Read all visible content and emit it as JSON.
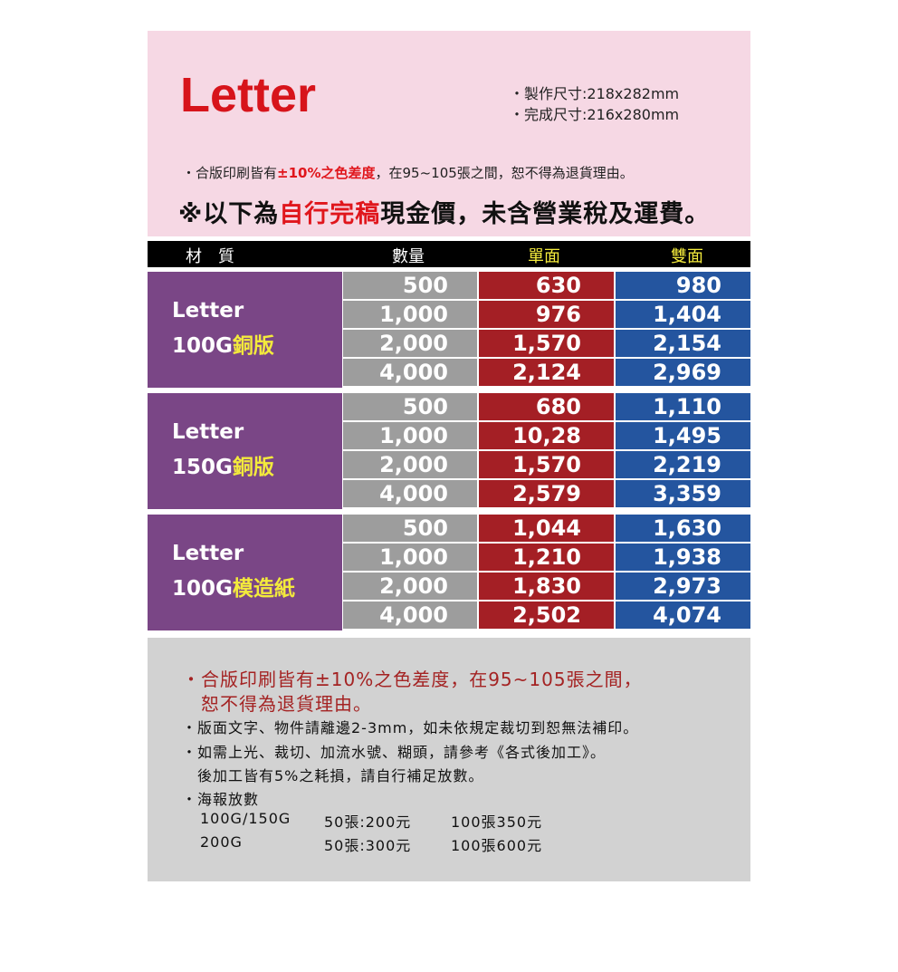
{
  "header": {
    "title": "Letter",
    "spec_make": "・製作尺寸:218x282mm",
    "spec_finish": "・完成尺寸:216x280mm",
    "note1_a": "・合版印刷皆有",
    "note1_red": "±10%之色差度",
    "note1_b": "，在95~105張之間，恕不得為退貨理由。",
    "note2_a": "※以下為",
    "note2_red": "自行完稿",
    "note2_b": "現金價，未含營業稅及運費。"
  },
  "table": {
    "headers": [
      "材　質",
      "數量",
      "單面",
      "雙面"
    ],
    "groups": [
      {
        "name": "Letter",
        "paper": "100G",
        "paper_type": "銅版",
        "rows": [
          [
            "500",
            "630",
            "980"
          ],
          [
            "1,000",
            "976",
            "1,404"
          ],
          [
            "2,000",
            "1,570",
            "2,154"
          ],
          [
            "4,000",
            "2,124",
            "2,969"
          ]
        ]
      },
      {
        "name": "Letter",
        "paper": "150G",
        "paper_type": "銅版",
        "rows": [
          [
            "500",
            "680",
            "1,110"
          ],
          [
            "1,000",
            "10,28",
            "1,495"
          ],
          [
            "2,000",
            "1,570",
            "2,219"
          ],
          [
            "4,000",
            "2,579",
            "3,359"
          ]
        ]
      },
      {
        "name": "Letter",
        "paper": "100G",
        "paper_type": "模造紙",
        "rows": [
          [
            "500",
            "1,044",
            "1,630"
          ],
          [
            "1,000",
            "1,210",
            "1,938"
          ],
          [
            "2,000",
            "1,830",
            "2,973"
          ],
          [
            "4,000",
            "2,502",
            "4,074"
          ]
        ]
      }
    ]
  },
  "footer": {
    "lines": [
      "・合版印刷皆有±10%之色差度，在95~105張之間，",
      "　恕不得為退貨理由。",
      "・版面文字、物件請離邊2-3mm，如未依規定裁切到恕無法補印。",
      "・如需上光、裁切、加流水號、糊頭，請參考《各式後加工》。",
      "　後加工皆有5%之耗損，請自行補足放數。",
      "・海報放數"
    ],
    "poster": [
      [
        "100G/150G",
        "50張:200元",
        "100張350元"
      ],
      [
        "200G",
        "50張:300元",
        "100張600元"
      ]
    ]
  },
  "colors": {
    "accent_red": "#e0161c",
    "purple": "#7a4686",
    "red": "#a41f25",
    "blue": "#24559f",
    "gray": "#9d9d9d"
  }
}
